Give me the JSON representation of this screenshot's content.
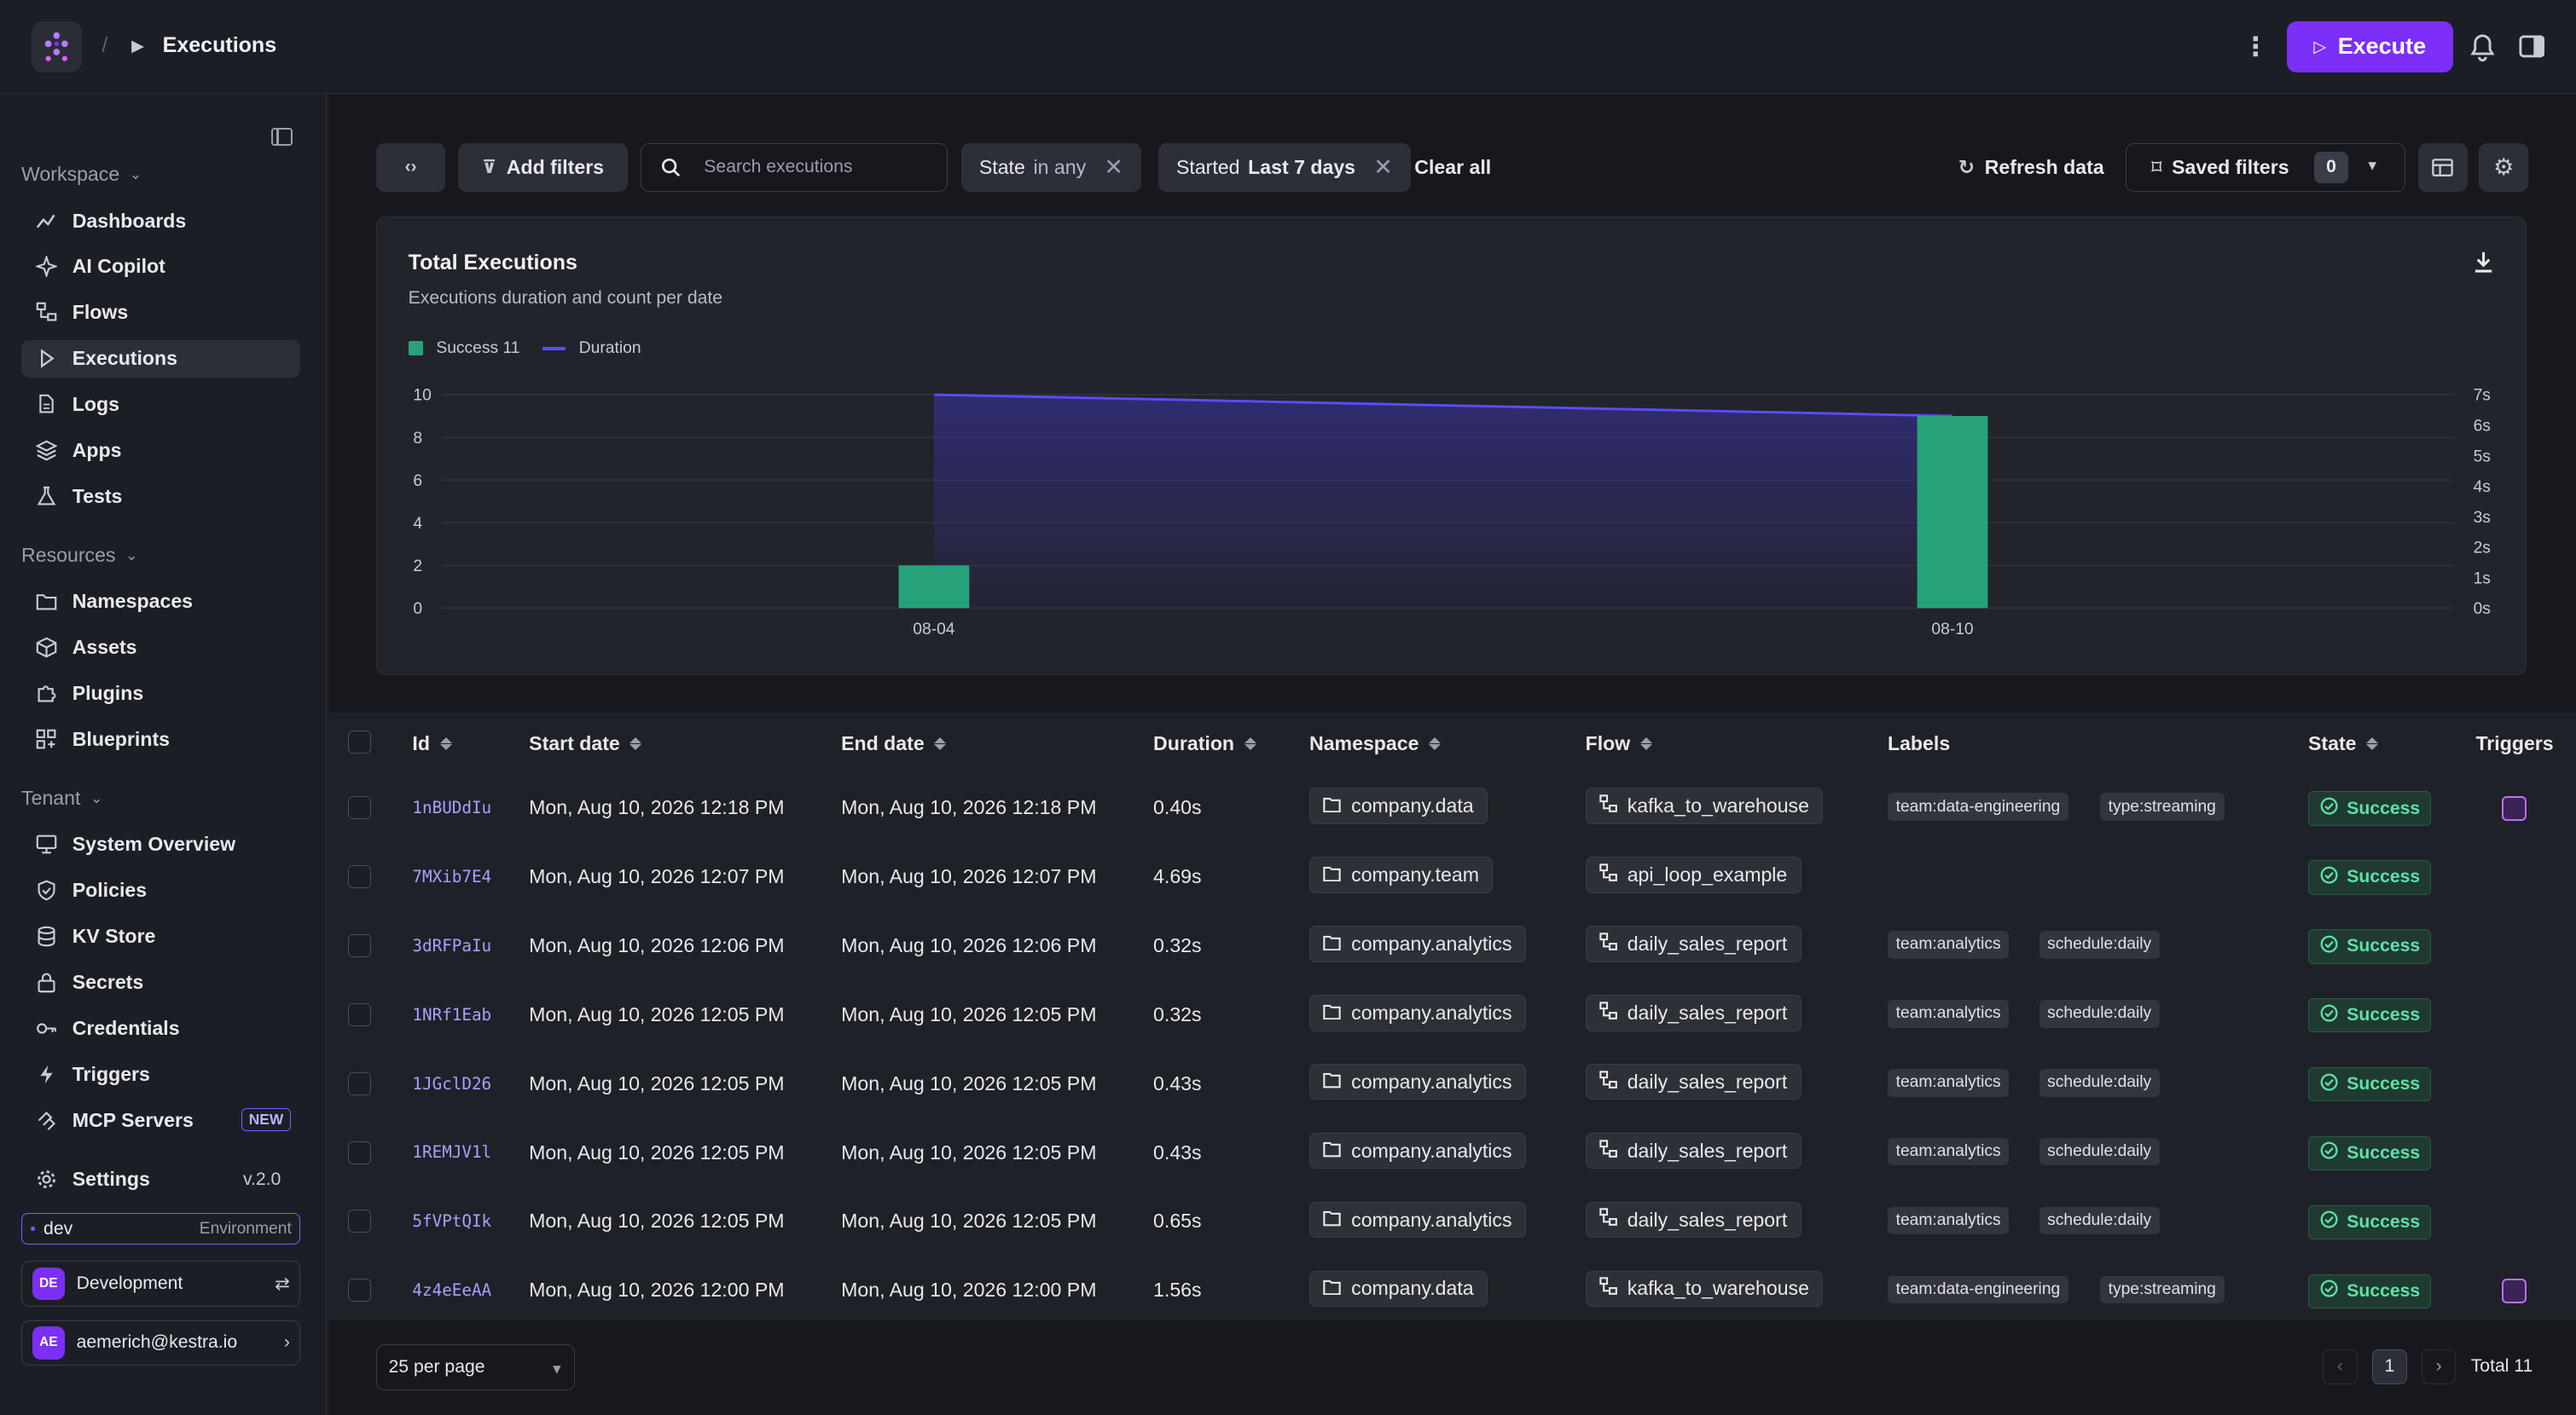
{
  "header": {
    "separator": "/",
    "title": "Executions",
    "execute_label": "Execute"
  },
  "sidebar": {
    "workspace_label": "Workspace",
    "workspace_items": [
      {
        "label": "Dashboards",
        "icon": "chart-line-icon"
      },
      {
        "label": "AI Copilot",
        "icon": "sparkle-icon"
      },
      {
        "label": "Flows",
        "icon": "flow-icon"
      },
      {
        "label": "Executions",
        "icon": "play-icon"
      },
      {
        "label": "Logs",
        "icon": "file-icon"
      },
      {
        "label": "Apps",
        "icon": "layers-icon"
      },
      {
        "label": "Tests",
        "icon": "flask-icon"
      }
    ],
    "resources_label": "Resources",
    "resources_items": [
      {
        "label": "Namespaces",
        "icon": "folder-icon"
      },
      {
        "label": "Assets",
        "icon": "cube-icon"
      },
      {
        "label": "Plugins",
        "icon": "puzzle-icon"
      },
      {
        "label": "Blueprints",
        "icon": "grid-icon"
      }
    ],
    "tenant_label": "Tenant",
    "tenant_items": [
      {
        "label": "System Overview",
        "icon": "monitor-icon"
      },
      {
        "label": "Policies",
        "icon": "shield-icon"
      },
      {
        "label": "KV Store",
        "icon": "database-icon"
      },
      {
        "label": "Secrets",
        "icon": "lock-icon"
      },
      {
        "label": "Credentials",
        "icon": "key-icon"
      },
      {
        "label": "Triggers",
        "icon": "bolt-icon"
      },
      {
        "label": "MCP Servers",
        "icon": "mcp-icon",
        "badge": "NEW"
      }
    ],
    "settings_label": "Settings",
    "version": "v.2.0",
    "env_value": "dev",
    "env_label": "Environment",
    "tenant_initials": "DE",
    "tenant_name": "Development",
    "user_initials": "AE",
    "user_email": "aemerich@kestra.io"
  },
  "filters": {
    "add_filters": "Add filters",
    "search_placeholder": "Search executions",
    "state_chip_key": "State",
    "state_chip_val": "in any",
    "started_chip_key": "Started",
    "started_chip_val": "Last 7 days",
    "clear_all": "Clear all",
    "refresh": "Refresh data",
    "saved_filters": "Saved filters",
    "saved_count": "0"
  },
  "chart_data": {
    "type": "bar",
    "title": "Total Executions",
    "subtitle": "Executions duration and count per date",
    "categories": [
      "08-04",
      "08-10"
    ],
    "series": [
      {
        "name": "Success 11",
        "legend_label": "Success 11",
        "values": [
          2,
          9
        ],
        "axis": "left",
        "color": "#26a37a"
      },
      {
        "name": "Duration",
        "legend_label": "Duration",
        "values": [
          7,
          6.3
        ],
        "axis": "right",
        "type": "area",
        "color": "#5a4dff"
      }
    ],
    "ylim": [
      0,
      10
    ],
    "yticks": [
      "0",
      "2",
      "4",
      "6",
      "8",
      "10"
    ],
    "y2lim": [
      0,
      7
    ],
    "y2ticks": [
      "0s",
      "1s",
      "2s",
      "3s",
      "4s",
      "5s",
      "6s",
      "7s"
    ]
  },
  "table": {
    "headers": {
      "id": "Id",
      "start": "Start date",
      "end": "End date",
      "duration": "Duration",
      "namespace": "Namespace",
      "flow": "Flow",
      "labels": "Labels",
      "state": "State",
      "triggers": "Triggers"
    },
    "rows": [
      {
        "id": "1nBUDdIu",
        "start": "Mon, Aug 10, 2026 12:18 PM",
        "end": "Mon, Aug 10, 2026 12:18 PM",
        "duration": "0.40s",
        "namespace": "company.data",
        "flow": "kafka_to_warehouse",
        "labels": [
          "team:data-engineering",
          "type:streaming"
        ],
        "state": "Success",
        "trigger": true
      },
      {
        "id": "7MXib7E4",
        "start": "Mon, Aug 10, 2026 12:07 PM",
        "end": "Mon, Aug 10, 2026 12:07 PM",
        "duration": "4.69s",
        "namespace": "company.team",
        "flow": "api_loop_example",
        "labels": [],
        "state": "Success",
        "trigger": false
      },
      {
        "id": "3dRFPaIu",
        "start": "Mon, Aug 10, 2026 12:06 PM",
        "end": "Mon, Aug 10, 2026 12:06 PM",
        "duration": "0.32s",
        "namespace": "company.analytics",
        "flow": "daily_sales_report",
        "labels": [
          "team:analytics",
          "schedule:daily"
        ],
        "state": "Success",
        "trigger": false
      },
      {
        "id": "1NRf1Eab",
        "start": "Mon, Aug 10, 2026 12:05 PM",
        "end": "Mon, Aug 10, 2026 12:05 PM",
        "duration": "0.32s",
        "namespace": "company.analytics",
        "flow": "daily_sales_report",
        "labels": [
          "team:analytics",
          "schedule:daily"
        ],
        "state": "Success",
        "trigger": false
      },
      {
        "id": "1JGclD26",
        "start": "Mon, Aug 10, 2026 12:05 PM",
        "end": "Mon, Aug 10, 2026 12:05 PM",
        "duration": "0.43s",
        "namespace": "company.analytics",
        "flow": "daily_sales_report",
        "labels": [
          "team:analytics",
          "schedule:daily"
        ],
        "state": "Success",
        "trigger": false
      },
      {
        "id": "1REMJV1l",
        "start": "Mon, Aug 10, 2026 12:05 PM",
        "end": "Mon, Aug 10, 2026 12:05 PM",
        "duration": "0.43s",
        "namespace": "company.analytics",
        "flow": "daily_sales_report",
        "labels": [
          "team:analytics",
          "schedule:daily"
        ],
        "state": "Success",
        "trigger": false
      },
      {
        "id": "5fVPtQIk",
        "start": "Mon, Aug 10, 2026 12:05 PM",
        "end": "Mon, Aug 10, 2026 12:05 PM",
        "duration": "0.65s",
        "namespace": "company.analytics",
        "flow": "daily_sales_report",
        "labels": [
          "team:analytics",
          "schedule:daily"
        ],
        "state": "Success",
        "trigger": false
      },
      {
        "id": "4z4eEeAA",
        "start": "Mon, Aug 10, 2026 12:00 PM",
        "end": "Mon, Aug 10, 2026 12:00 PM",
        "duration": "1.56s",
        "namespace": "company.data",
        "flow": "kafka_to_warehouse",
        "labels": [
          "team:data-engineering",
          "type:streaming"
        ],
        "state": "Success",
        "trigger": true
      }
    ]
  },
  "footer": {
    "per_page": "25 per page",
    "page": "1",
    "total": "Total 11"
  }
}
